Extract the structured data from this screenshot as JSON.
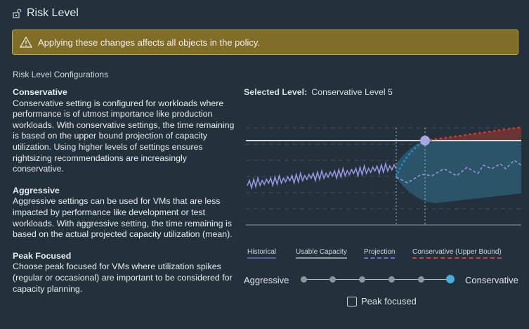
{
  "header": {
    "title": "Risk Level",
    "icon": "unlock-icon"
  },
  "warning": {
    "text": "Applying these changes affects all objects in the policy.",
    "icon": "warning-icon"
  },
  "section_title": "Risk Level Configurations",
  "descriptions": [
    {
      "title": "Conservative",
      "text": "Conservative setting is configured for workloads where performance is of utmost importance like production workloads. With conservative settings, the time remaining is based on the upper bound projection of capacity utilization. Using higher levels of settings ensures rightsizing recommendations are increasingly conservative."
    },
    {
      "title": "Aggressive",
      "text": "Aggressive settings can be used for VMs that are less impacted by performance like development or test workloads. With aggressive setting, the time remaining is based on the actual projected capacity utilization (mean)."
    },
    {
      "title": "Peak Focused",
      "text": "Choose peak focused for VMs where utilization spikes (regular or occasional) are important to be considered for capacity planning."
    }
  ],
  "selected": {
    "label": "Selected Level:",
    "value": "Conservative Level 5"
  },
  "legend": [
    "Historical",
    "Usable Capacity",
    "Projection",
    "Conservative (Upper Bound)"
  ],
  "slider": {
    "min_label": "Aggressive",
    "max_label": "Conservative",
    "levels": 6,
    "selected_index": 5
  },
  "checkbox": {
    "label": "Peak focused",
    "checked": false
  },
  "colors": {
    "historical": "#9b97e0",
    "capacity": "#d8dcde",
    "band": "#2c5468",
    "upper": "#e0392b",
    "accent": "#49afd9"
  }
}
